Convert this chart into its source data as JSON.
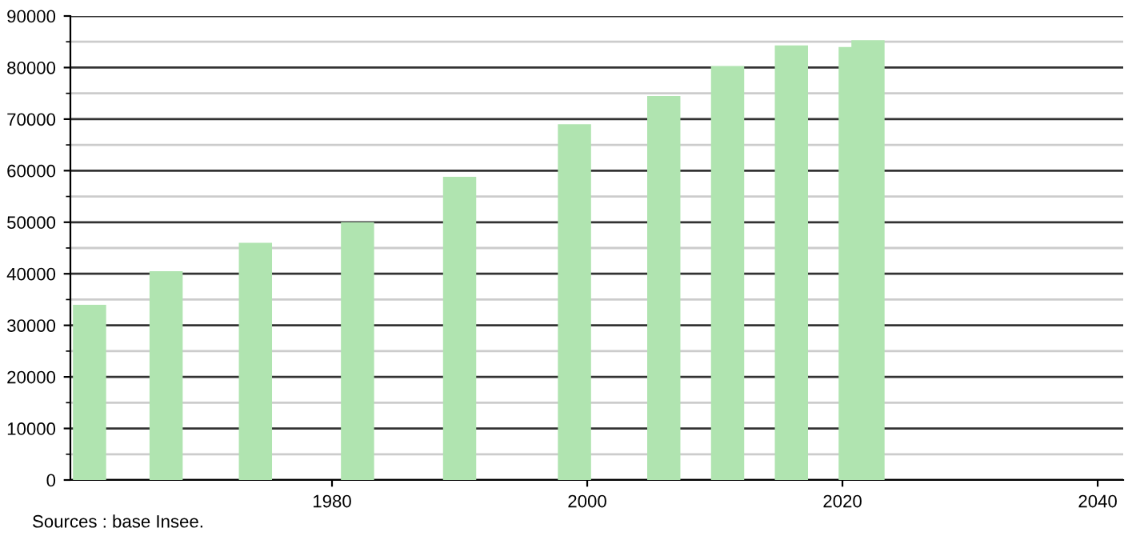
{
  "chart_data": {
    "type": "bar",
    "x": [
      1961,
      1967,
      1974,
      1982,
      1990,
      1999,
      2006,
      2011,
      2016,
      2021,
      2022
    ],
    "values": [
      34000,
      40500,
      46000,
      50000,
      58800,
      69000,
      74500,
      80300,
      84300,
      84000,
      85300
    ],
    "color": "#b0e4b0",
    "xlim": [
      1959.5,
      2042
    ],
    "xticks": [
      1980,
      2000,
      2020,
      2040
    ],
    "ylim": [
      0,
      90000
    ],
    "yticks": [
      0,
      10000,
      20000,
      30000,
      40000,
      50000,
      60000,
      70000,
      80000,
      90000
    ],
    "grid": "y",
    "annotations": [
      "Sources : base Insee."
    ]
  }
}
